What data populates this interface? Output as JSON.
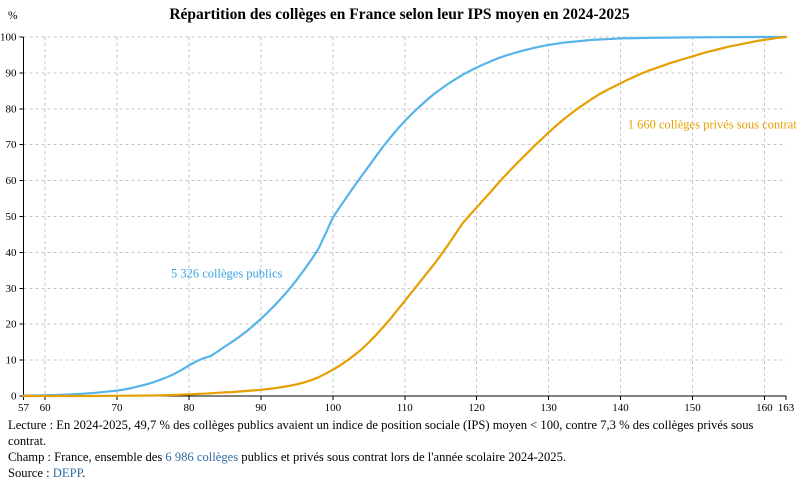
{
  "title": "Répartition des collèges en France selon leur IPS moyen en 2024-2025",
  "chart_data": {
    "type": "line",
    "title": "Répartition des collèges en France selon leur IPS moyen en 2024-2025",
    "xlabel": "",
    "ylabel": "%",
    "xlim": [
      57,
      163
    ],
    "ylim": [
      0,
      100
    ],
    "x_ticks": [
      57,
      60,
      70,
      80,
      90,
      100,
      110,
      120,
      130,
      140,
      150,
      160,
      163
    ],
    "y_ticks": [
      0,
      10,
      20,
      30,
      40,
      50,
      60,
      70,
      80,
      90,
      100
    ],
    "grid": "dashed",
    "legend_position": "inline-annotations",
    "series": [
      {
        "name": "5 326 collèges publics",
        "color": "#56b4e9",
        "points": [
          [
            57,
            0.1
          ],
          [
            59,
            0.15
          ],
          [
            61,
            0.25
          ],
          [
            63,
            0.4
          ],
          [
            65,
            0.6
          ],
          [
            67,
            0.9
          ],
          [
            69,
            1.3
          ],
          [
            70,
            1.5
          ],
          [
            71,
            1.8
          ],
          [
            72,
            2.2
          ],
          [
            73,
            2.7
          ],
          [
            74,
            3.2
          ],
          [
            75,
            3.8
          ],
          [
            76,
            4.5
          ],
          [
            77,
            5.3
          ],
          [
            78,
            6.2
          ],
          [
            79,
            7.3
          ],
          [
            80,
            8.5
          ],
          [
            81,
            9.6
          ],
          [
            82,
            10.5
          ],
          [
            83,
            11.1
          ],
          [
            84,
            12.4
          ],
          [
            85,
            13.8
          ],
          [
            86,
            15.1
          ],
          [
            87,
            16.5
          ],
          [
            88,
            18
          ],
          [
            89,
            19.7
          ],
          [
            90,
            21.5
          ],
          [
            91,
            23.4
          ],
          [
            92,
            25.4
          ],
          [
            93,
            27.6
          ],
          [
            94,
            29.9
          ],
          [
            95,
            32.4
          ],
          [
            96,
            35.1
          ],
          [
            97,
            37.9
          ],
          [
            98,
            41
          ],
          [
            99,
            45.2
          ],
          [
            100,
            49.7
          ],
          [
            101,
            52.7
          ],
          [
            102,
            55.6
          ],
          [
            103,
            58.5
          ],
          [
            104,
            61.3
          ],
          [
            105,
            64
          ],
          [
            106,
            66.8
          ],
          [
            107,
            69.5
          ],
          [
            108,
            72
          ],
          [
            109,
            74.4
          ],
          [
            110,
            76.6
          ],
          [
            111,
            78.6
          ],
          [
            112,
            80.5
          ],
          [
            113,
            82.3
          ],
          [
            114,
            84
          ],
          [
            115,
            85.5
          ],
          [
            116,
            86.9
          ],
          [
            117,
            88.2
          ],
          [
            118,
            89.4
          ],
          [
            119,
            90.5
          ],
          [
            120,
            91.5
          ],
          [
            121,
            92.4
          ],
          [
            122,
            93.3
          ],
          [
            123,
            94.1
          ],
          [
            124,
            94.8
          ],
          [
            125,
            95.4
          ],
          [
            126,
            96
          ],
          [
            127,
            96.5
          ],
          [
            128,
            97
          ],
          [
            129,
            97.4
          ],
          [
            130,
            97.8
          ],
          [
            131,
            98.1
          ],
          [
            132,
            98.4
          ],
          [
            133,
            98.6
          ],
          [
            134,
            98.8
          ],
          [
            135,
            99
          ],
          [
            136,
            99.2
          ],
          [
            137,
            99.3
          ],
          [
            138,
            99.4
          ],
          [
            139,
            99.5
          ],
          [
            140,
            99.6
          ],
          [
            142,
            99.7
          ],
          [
            144,
            99.75
          ],
          [
            146,
            99.8
          ],
          [
            148,
            99.85
          ],
          [
            150,
            99.9
          ],
          [
            153,
            99.95
          ],
          [
            156,
            99.97
          ],
          [
            159,
            99.99
          ],
          [
            161,
            100
          ],
          [
            163,
            100
          ]
        ]
      },
      {
        "name": "1 660 collèges privés sous contrat",
        "color": "#e69f00",
        "points": [
          [
            57,
            0
          ],
          [
            65,
            0
          ],
          [
            70,
            0.05
          ],
          [
            73,
            0.1
          ],
          [
            75,
            0.15
          ],
          [
            77,
            0.25
          ],
          [
            79,
            0.35
          ],
          [
            80,
            0.45
          ],
          [
            81,
            0.55
          ],
          [
            82,
            0.65
          ],
          [
            83,
            0.75
          ],
          [
            84,
            0.9
          ],
          [
            85,
            1
          ],
          [
            86,
            1.1
          ],
          [
            87,
            1.25
          ],
          [
            88,
            1.4
          ],
          [
            89,
            1.55
          ],
          [
            90,
            1.7
          ],
          [
            91,
            1.95
          ],
          [
            92,
            2.2
          ],
          [
            93,
            2.5
          ],
          [
            94,
            2.85
          ],
          [
            95,
            3.25
          ],
          [
            96,
            3.75
          ],
          [
            97,
            4.4
          ],
          [
            98,
            5.2
          ],
          [
            99,
            6.2
          ],
          [
            100,
            7.3
          ],
          [
            101,
            8.5
          ],
          [
            102,
            9.9
          ],
          [
            103,
            11.4
          ],
          [
            104,
            13
          ],
          [
            105,
            14.9
          ],
          [
            106,
            17
          ],
          [
            107,
            19.2
          ],
          [
            108,
            21.5
          ],
          [
            109,
            24
          ],
          [
            110,
            26.5
          ],
          [
            111,
            29
          ],
          [
            112,
            31.5
          ],
          [
            113,
            34
          ],
          [
            114,
            36.5
          ],
          [
            115,
            39.2
          ],
          [
            116,
            42
          ],
          [
            117,
            45
          ],
          [
            118,
            48
          ],
          [
            119,
            50.3
          ],
          [
            120,
            52.5
          ],
          [
            121,
            54.8
          ],
          [
            122,
            57
          ],
          [
            123,
            59.3
          ],
          [
            124,
            61.5
          ],
          [
            125,
            63.6
          ],
          [
            126,
            65.6
          ],
          [
            127,
            67.6
          ],
          [
            128,
            69.6
          ],
          [
            129,
            71.5
          ],
          [
            130,
            73.4
          ],
          [
            131,
            75.2
          ],
          [
            132,
            76.9
          ],
          [
            133,
            78.5
          ],
          [
            134,
            80
          ],
          [
            135,
            81.4
          ],
          [
            136,
            82.7
          ],
          [
            137,
            84
          ],
          [
            138,
            85.1
          ],
          [
            139,
            86.1
          ],
          [
            140,
            87.1
          ],
          [
            141,
            88.1
          ],
          [
            142,
            89
          ],
          [
            143,
            89.9
          ],
          [
            144,
            90.7
          ],
          [
            145,
            91.4
          ],
          [
            146,
            92.1
          ],
          [
            147,
            92.8
          ],
          [
            148,
            93.4
          ],
          [
            149,
            94
          ],
          [
            150,
            94.6
          ],
          [
            151,
            95.2
          ],
          [
            152,
            95.8
          ],
          [
            153,
            96.3
          ],
          [
            154,
            96.8
          ],
          [
            155,
            97.3
          ],
          [
            156,
            97.7
          ],
          [
            157,
            98.1
          ],
          [
            158,
            98.5
          ],
          [
            159,
            98.9
          ],
          [
            160,
            99.2
          ],
          [
            161,
            99.5
          ],
          [
            162,
            99.8
          ],
          [
            163,
            100
          ]
        ]
      }
    ],
    "annotations": [
      {
        "text": "5 326 collèges publics",
        "x": 77.5,
        "y": 33,
        "color": "#3ba3de"
      },
      {
        "text": "1 660 collèges privés sous contrat",
        "x": 141,
        "y": 74.5,
        "color": "#e69f00"
      }
    ]
  },
  "notes": {
    "lecture": "Lecture : En 2024-2025, 49,7 % des collèges publics avaient un indice de position sociale (IPS) moyen < 100, contre 7,3 % des collèges privés sous contrat.",
    "champ_prefix": "Champ : France, ensemble des ",
    "champ_link": "6 986 collèges",
    "champ_suffix": " publics et privés sous contrat lors de l'année scolaire 2024-2025.",
    "source_prefix": "Source : ",
    "source_link": "DEPP",
    "source_suffix": "."
  }
}
